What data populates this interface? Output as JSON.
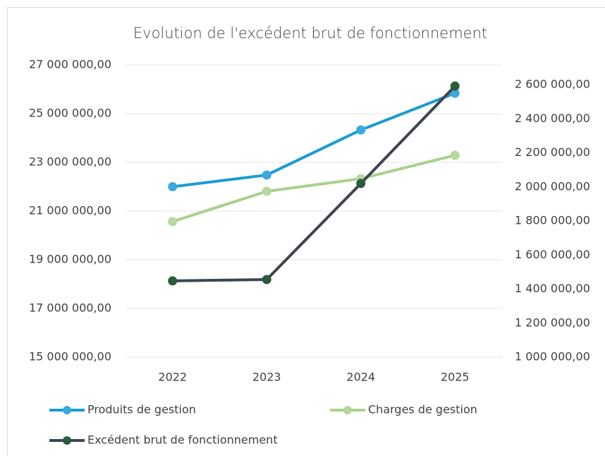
{
  "chart_data": {
    "type": "line",
    "title": "Evolution de l'excédent brut de fonctionnement",
    "categories": [
      "2022",
      "2023",
      "2024",
      "2025"
    ],
    "series": [
      {
        "name": "Produits de gestion",
        "color": "#1a9bd1",
        "marker_color": "#3aa9dc",
        "values": [
          22000000,
          22480000,
          24330000,
          25840000
        ]
      },
      {
        "name": "Charges de gestion",
        "color": "#a9d18e",
        "marker_color": "#b5d89d",
        "values": [
          20570000,
          21810000,
          22330000,
          23290000
        ]
      },
      {
        "name": "Excédent brut de fonctionnement",
        "color": "#3c4650",
        "marker_color": "#2d5a3a",
        "axis": "y2",
        "values": [
          1448000,
          1456000,
          2020000,
          2592000
        ]
      }
    ],
    "ylim": [
      15000000,
      27000000
    ],
    "yticks": [
      {
        "value": 15000000,
        "label": "15 000 000,00"
      },
      {
        "value": 17000000,
        "label": "17 000 000,00"
      },
      {
        "value": 19000000,
        "label": "19 000 000,00"
      },
      {
        "value": 21000000,
        "label": "21 000 000,00"
      },
      {
        "value": 23000000,
        "label": "23 000 000,00"
      },
      {
        "value": 25000000,
        "label": "25 000 000,00"
      },
      {
        "value": 27000000,
        "label": "27 000 000,00"
      }
    ],
    "y2lim": [
      1000000,
      2600000
    ],
    "y2ticks": [
      {
        "value": 1000000,
        "label": "1 000 000,00"
      },
      {
        "value": 1200000,
        "label": "1 200 000,00"
      },
      {
        "value": 1400000,
        "label": "1 400 000,00"
      },
      {
        "value": 1600000,
        "label": "1 600 000,00"
      },
      {
        "value": 1800000,
        "label": "1 800 000,00"
      },
      {
        "value": 2000000,
        "label": "2 000 000,00"
      },
      {
        "value": 2200000,
        "label": "2 200 000,00"
      },
      {
        "value": 2400000,
        "label": "2 400 000,00"
      },
      {
        "value": 2600000,
        "label": "2 600 000,00"
      }
    ],
    "grid": true
  }
}
